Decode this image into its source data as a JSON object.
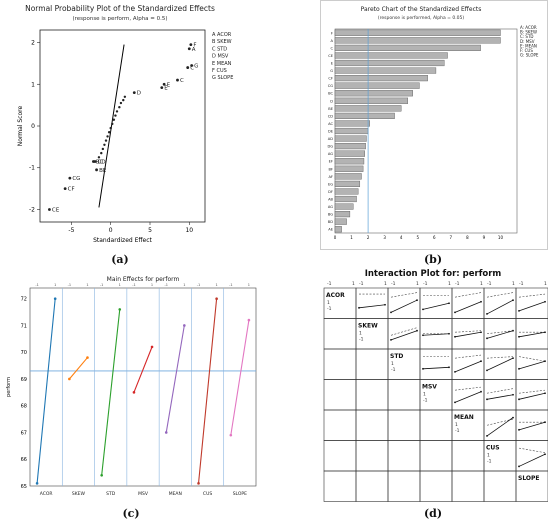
{
  "captions": {
    "a": "(a)",
    "b": "(b)",
    "c": "(c)",
    "d": "(d)"
  },
  "chart_data": [
    {
      "type": "scatter",
      "title": "Normal Probability Plot of the Standardized Effects",
      "subtitle": "(response is perform, Alpha = 0.5)",
      "xlabel": "Standardized Effect",
      "ylabel": "Normal Score",
      "xlim": [
        -9,
        12
      ],
      "ylim": [
        -2.3,
        2.3
      ],
      "xticks": [
        -5,
        0,
        5,
        10
      ],
      "yticks": [
        -2,
        -1,
        0,
        1,
        2
      ],
      "legend": [
        "A  ACOR",
        "B  SKEW",
        "C  STD",
        "D  MSV",
        "E  MEAN",
        "F  CUS",
        "G  SLOPE"
      ],
      "fit_line": [
        [
          -1.5,
          -1.95
        ],
        [
          1.7,
          1.95
        ]
      ],
      "labeled_points": [
        {
          "label": "F",
          "x": 10.2,
          "y": 1.95
        },
        {
          "label": "A",
          "x": 10.0,
          "y": 1.85
        },
        {
          "label": "G",
          "x": 10.3,
          "y": 1.45
        },
        {
          "label": "C",
          "x": 9.8,
          "y": 1.4
        },
        {
          "label": "C",
          "x": 8.5,
          "y": 1.1
        },
        {
          "label": "E",
          "x": 6.8,
          "y": 1.0
        },
        {
          "label": "E",
          "x": 6.5,
          "y": 0.92
        },
        {
          "label": "D",
          "x": 3.0,
          "y": 0.8
        },
        {
          "label": "BC",
          "x": -2.2,
          "y": -0.85
        },
        {
          "label": "CD",
          "x": -2.0,
          "y": -0.85
        },
        {
          "label": "BE",
          "x": -1.8,
          "y": -1.05
        },
        {
          "label": "CG",
          "x": -5.2,
          "y": -1.25
        },
        {
          "label": "CF",
          "x": -5.8,
          "y": -1.5
        },
        {
          "label": "CE",
          "x": -7.8,
          "y": -2.0
        }
      ],
      "points": [
        {
          "x": 1.8,
          "y": 0.7
        },
        {
          "x": 1.6,
          "y": 0.62
        },
        {
          "x": 1.3,
          "y": 0.55
        },
        {
          "x": 1.1,
          "y": 0.45
        },
        {
          "x": 0.8,
          "y": 0.35
        },
        {
          "x": 0.6,
          "y": 0.25
        },
        {
          "x": 0.4,
          "y": 0.15
        },
        {
          "x": 0.2,
          "y": 0.05
        },
        {
          "x": 0.0,
          "y": -0.05
        },
        {
          "x": -0.2,
          "y": -0.15
        },
        {
          "x": -0.4,
          "y": -0.25
        },
        {
          "x": -0.6,
          "y": -0.35
        },
        {
          "x": -0.8,
          "y": -0.45
        },
        {
          "x": -1.0,
          "y": -0.55
        },
        {
          "x": -1.2,
          "y": -0.65
        },
        {
          "x": -1.5,
          "y": -0.75
        }
      ]
    },
    {
      "type": "bar",
      "orientation": "horizontal",
      "title": "Pareto Chart of the Standardized Effects",
      "subtitle": "(response is performed, Alpha = 0.05)",
      "legend": [
        "A: ACOR",
        "B: SKEW",
        "C: STD",
        "D: MSV",
        "E: MEAN",
        "F: CUS",
        "G: SLOPE"
      ],
      "xlim": [
        0,
        11
      ],
      "xticks": [
        0,
        1,
        2,
        3,
        4,
        5,
        6,
        7,
        8,
        9,
        10
      ],
      "reference_line": 2.0,
      "categories": [
        "F",
        "A",
        "C",
        "CE",
        "E",
        "G",
        "CF",
        "CG",
        "BC",
        "D",
        "BE",
        "CD",
        "AC",
        "DE",
        "AD",
        "DG",
        "AG",
        "EF",
        "BF",
        "AF",
        "EG",
        "DF",
        "AB",
        "AG",
        "BG",
        "BD",
        "AE"
      ],
      "values": [
        10.0,
        10.0,
        8.8,
        6.8,
        6.6,
        6.1,
        5.6,
        5.1,
        4.7,
        4.4,
        4.0,
        3.6,
        2.1,
        2.0,
        1.9,
        1.85,
        1.8,
        1.75,
        1.7,
        1.6,
        1.5,
        1.4,
        1.3,
        1.1,
        0.9,
        0.7,
        0.4
      ]
    },
    {
      "type": "line",
      "title": "Main Effects for perform",
      "ylabel": "perform",
      "ylim": [
        65,
        72.4
      ],
      "yticks": [
        65,
        66,
        67,
        68,
        69,
        70,
        71,
        72
      ],
      "reference_line": 69.3,
      "level_labels": [
        "-1",
        "1"
      ],
      "series": [
        {
          "name": "ACOR",
          "color": "#1f77b4",
          "values": [
            65.1,
            72.0
          ]
        },
        {
          "name": "SKEW",
          "color": "#ff7f0e",
          "values": [
            69.0,
            69.8
          ]
        },
        {
          "name": "STD",
          "color": "#2ca02c",
          "values": [
            65.4,
            71.6
          ]
        },
        {
          "name": "MSV",
          "color": "#d62728",
          "values": [
            68.5,
            70.2
          ]
        },
        {
          "name": "MEAN",
          "color": "#9467bd",
          "values": [
            67.0,
            71.0
          ]
        },
        {
          "name": "CUS",
          "color": "#c0392b",
          "values": [
            65.1,
            72.0
          ]
        },
        {
          "name": "SLOPE",
          "color": "#e377c2",
          "values": [
            66.9,
            71.2
          ]
        }
      ]
    },
    {
      "type": "line",
      "title": "Interaction Plot for: perform",
      "factors": [
        "ACOR",
        "SKEW",
        "STD",
        "MSV",
        "MEAN",
        "CUS",
        "SLOPE"
      ],
      "level_labels": [
        "-1",
        "1"
      ],
      "legend_levels": [
        "1",
        "-1"
      ],
      "cells": [
        {
          "row": 0,
          "col": 1,
          "solid": [
            0.35,
            0.45
          ],
          "dashed": [
            0.8,
            0.8
          ]
        },
        {
          "row": 0,
          "col": 2,
          "solid": [
            0.2,
            0.6
          ],
          "dashed": [
            0.7,
            0.85
          ]
        },
        {
          "row": 0,
          "col": 3,
          "solid": [
            0.3,
            0.5
          ],
          "dashed": [
            0.75,
            0.75
          ]
        },
        {
          "row": 0,
          "col": 4,
          "solid": [
            0.2,
            0.55
          ],
          "dashed": [
            0.7,
            0.85
          ]
        },
        {
          "row": 0,
          "col": 5,
          "solid": [
            0.15,
            0.6
          ],
          "dashed": [
            0.7,
            0.85
          ]
        },
        {
          "row": 0,
          "col": 6,
          "solid": [
            0.25,
            0.55
          ],
          "dashed": [
            0.7,
            0.8
          ]
        },
        {
          "row": 1,
          "col": 2,
          "solid": [
            0.3,
            0.6
          ],
          "dashed": [
            0.45,
            0.7
          ]
        },
        {
          "row": 1,
          "col": 3,
          "solid": [
            0.45,
            0.5
          ],
          "dashed": [
            0.5,
            0.5
          ]
        },
        {
          "row": 1,
          "col": 4,
          "solid": [
            0.4,
            0.55
          ],
          "dashed": [
            0.55,
            0.6
          ]
        },
        {
          "row": 1,
          "col": 5,
          "solid": [
            0.35,
            0.6
          ],
          "dashed": [
            0.5,
            0.6
          ]
        },
        {
          "row": 1,
          "col": 6,
          "solid": [
            0.4,
            0.55
          ],
          "dashed": [
            0.55,
            0.55
          ]
        },
        {
          "row": 2,
          "col": 3,
          "solid": [
            0.35,
            0.4
          ],
          "dashed": [
            0.75,
            0.75
          ]
        },
        {
          "row": 2,
          "col": 4,
          "solid": [
            0.25,
            0.6
          ],
          "dashed": [
            0.7,
            0.8
          ]
        },
        {
          "row": 2,
          "col": 5,
          "solid": [
            0.3,
            0.7
          ],
          "dashed": [
            0.7,
            0.75
          ]
        },
        {
          "row": 2,
          "col": 6,
          "solid": [
            0.35,
            0.6
          ],
          "dashed": [
            0.75,
            0.6
          ]
        },
        {
          "row": 3,
          "col": 4,
          "solid": [
            0.25,
            0.6
          ],
          "dashed": [
            0.65,
            0.75
          ]
        },
        {
          "row": 3,
          "col": 5,
          "solid": [
            0.35,
            0.5
          ],
          "dashed": [
            0.55,
            0.7
          ]
        },
        {
          "row": 3,
          "col": 6,
          "solid": [
            0.35,
            0.55
          ],
          "dashed": [
            0.55,
            0.65
          ]
        },
        {
          "row": 4,
          "col": 5,
          "solid": [
            0.15,
            0.75
          ],
          "dashed": [
            0.5,
            0.7
          ]
        },
        {
          "row": 4,
          "col": 6,
          "solid": [
            0.35,
            0.6
          ],
          "dashed": [
            0.6,
            0.6
          ]
        },
        {
          "row": 5,
          "col": 6,
          "solid": [
            0.15,
            0.55
          ],
          "dashed": [
            0.75,
            0.6
          ]
        }
      ]
    }
  ]
}
